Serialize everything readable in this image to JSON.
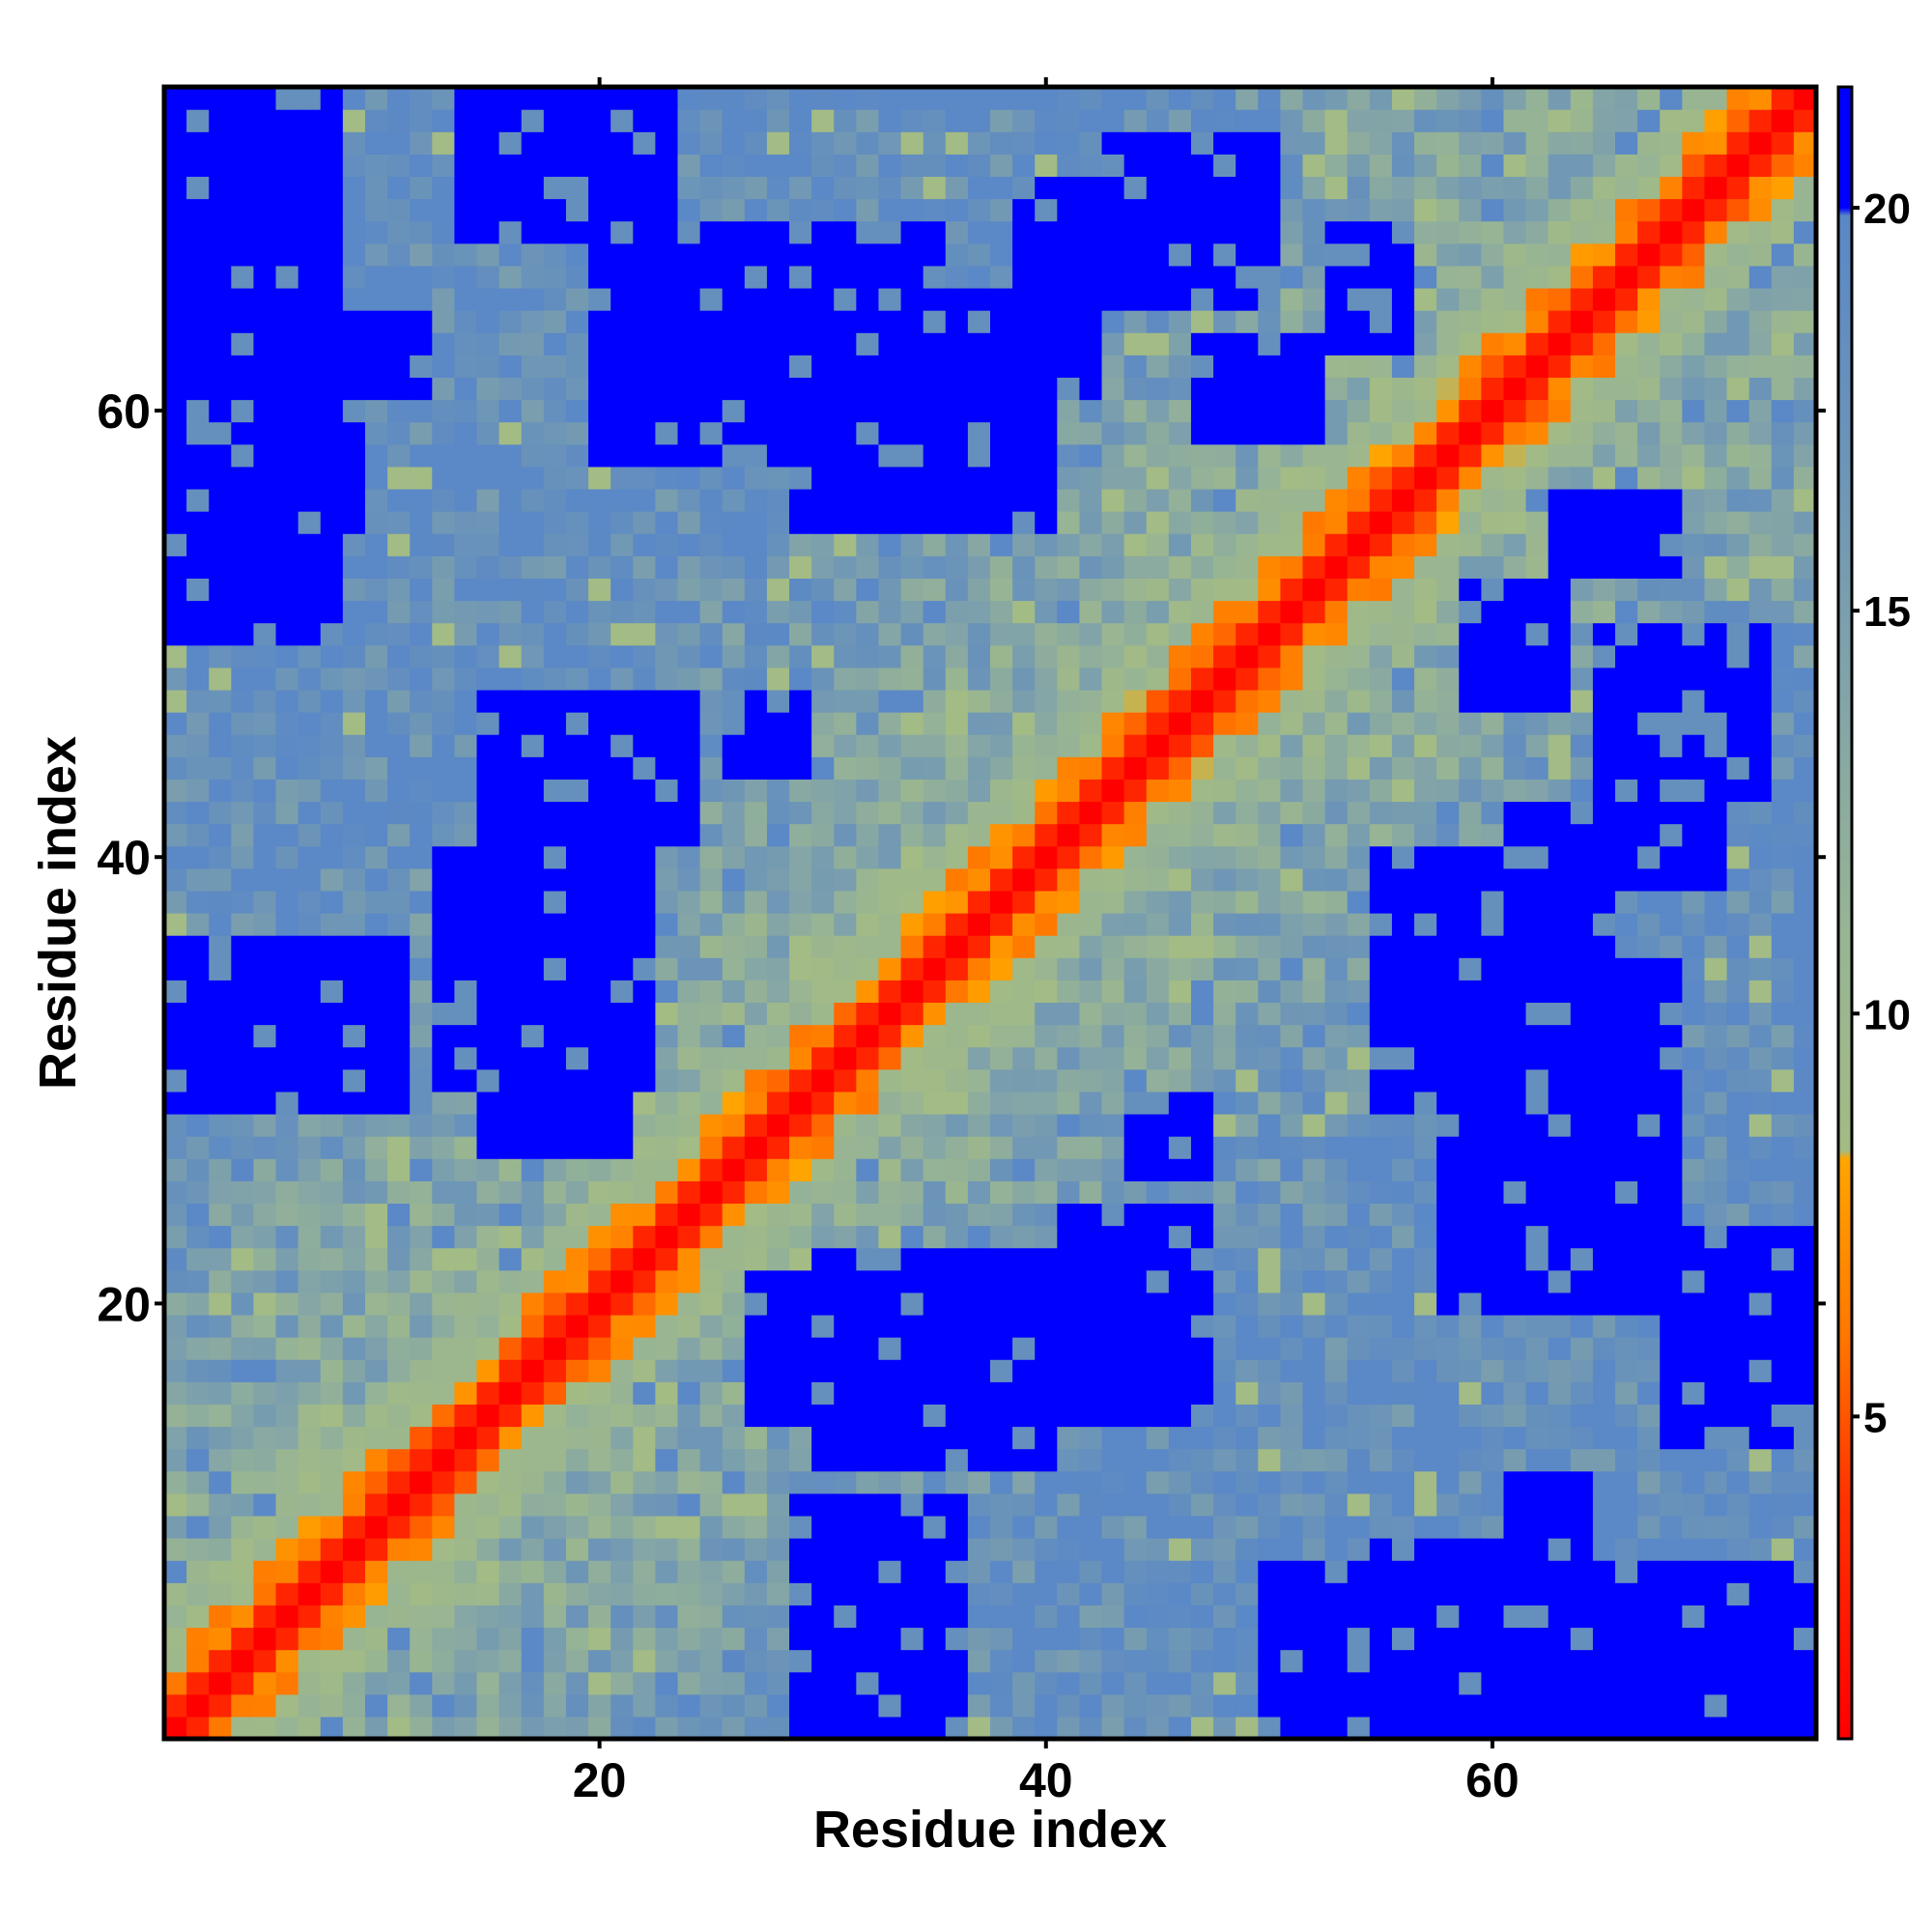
{
  "chart_data": {
    "type": "heatmap",
    "title": "",
    "xlabel": "Residue index",
    "ylabel": "Residue index",
    "n_residues": 74,
    "xlim": [
      0.5,
      74.5
    ],
    "ylim": [
      0.5,
      74.5
    ],
    "x_ticks": [
      20,
      40,
      60
    ],
    "y_ticks": [
      20,
      40,
      60
    ],
    "colorbar": {
      "range": [
        1,
        21.5
      ],
      "ticks": [
        5,
        10,
        15,
        20
      ],
      "colors": {
        "red": "#ff0000",
        "orange_red": "#ff6600",
        "orange": "#ffa500",
        "sage": "#9fb98a",
        "grey_green": "#86a89c",
        "steel_blue": "#6b94b8",
        "blue_grey": "#5b88c4",
        "blue": "#0000ff"
      },
      "stops": [
        {
          "value": 1,
          "color": "#ff0000"
        },
        {
          "value": 4,
          "color": "#ff3300"
        },
        {
          "value": 6,
          "color": "#ff7700"
        },
        {
          "value": 8.2,
          "color": "#ffa500"
        },
        {
          "value": 8.3,
          "color": "#a3bb84"
        },
        {
          "value": 11,
          "color": "#97b494"
        },
        {
          "value": 14,
          "color": "#82a4a8"
        },
        {
          "value": 17,
          "color": "#6b94b8"
        },
        {
          "value": 19.9,
          "color": "#5a88c6"
        },
        {
          "value": 20,
          "color": "#0000ff"
        },
        {
          "value": 21.5,
          "color": "#0000ff"
        }
      ]
    },
    "z_description": "symmetric residue-residue distance matrix; 1 on the diagonal, increasing with sequence separation, far values saturate at blue",
    "blue_regions": [
      {
        "i": [
          1,
          8
        ],
        "j": [
          50,
          74
        ]
      },
      {
        "i": [
          14,
          23
        ],
        "j": [
          68,
          74
        ]
      },
      {
        "i": [
          15,
          21
        ],
        "j": [
          27,
          33
        ]
      },
      {
        "i": [
          15,
          21
        ],
        "j": [
          36,
          41
        ]
      },
      {
        "i": [
          29,
          36
        ],
        "j": [
          1,
          11
        ]
      },
      {
        "i": [
          29,
          40
        ],
        "j": [
          55,
          65
        ]
      },
      {
        "i": [
          26,
          29
        ],
        "j": [
          44,
          47
        ]
      },
      {
        "i": [
          30,
          40
        ],
        "j": [
          13,
          22
        ]
      },
      {
        "i": [
          41,
          47
        ],
        "j": [
          15,
          24
        ]
      },
      {
        "i": [
          47,
          52
        ],
        "j": [
          59,
          63
        ]
      },
      {
        "i": [
          53,
          56
        ],
        "j": [
          63,
          68
        ]
      },
      {
        "i": [
          55,
          60
        ],
        "j": [
          1,
          9
        ]
      },
      {
        "i": [
          61,
          64
        ],
        "j": [
          8,
          12
        ]
      },
      {
        "i": [
          58,
          68
        ],
        "j": [
          20,
          35
        ]
      },
      {
        "i": [
          61,
          70
        ],
        "j": [
          39,
          42
        ]
      },
      {
        "i": [
          65,
          72
        ],
        "j": [
          43,
          50
        ]
      },
      {
        "i": [
          68,
          74
        ],
        "j": [
          1,
          6
        ]
      }
    ]
  }
}
